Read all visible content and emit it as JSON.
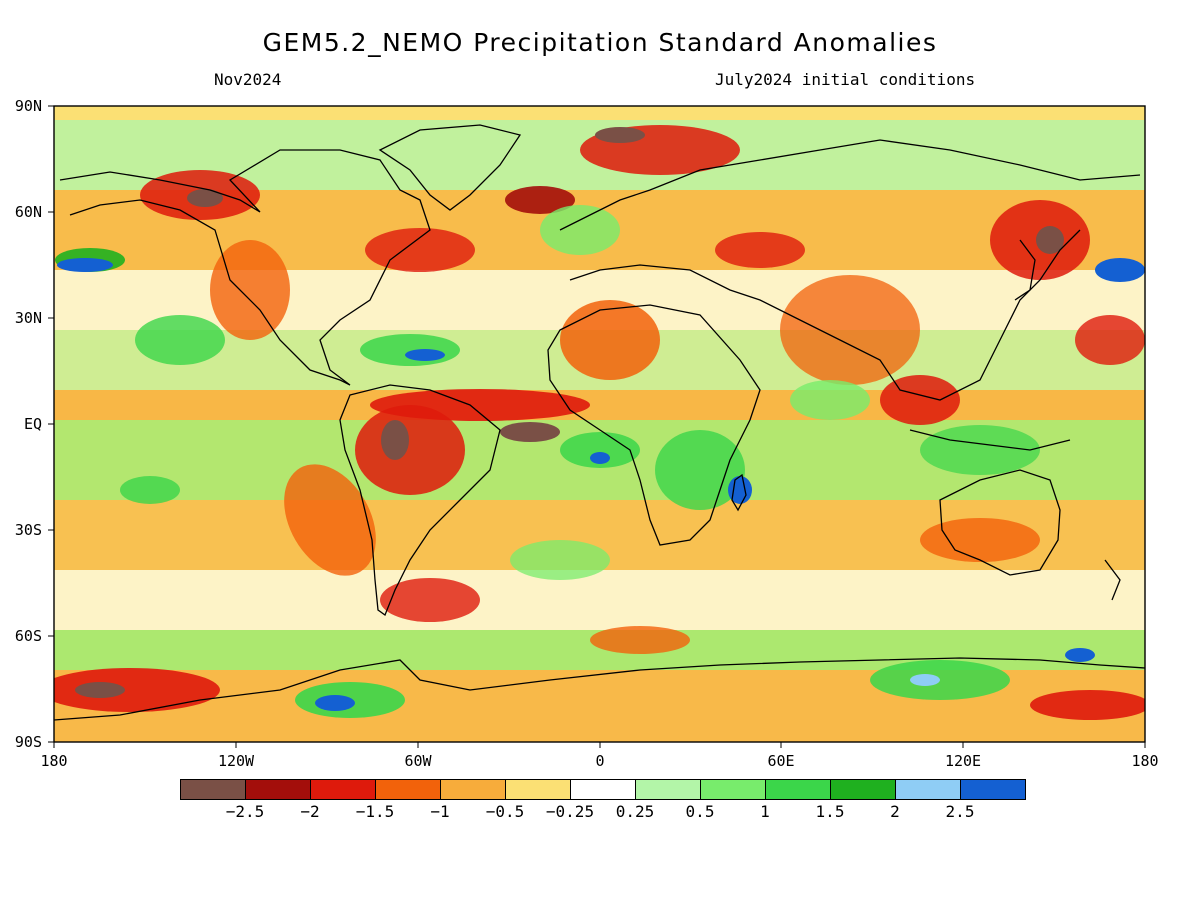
{
  "title": "GEM5.2_NEMO Precipitation Standard Anomalies",
  "subtitle_left": "Nov2024",
  "subtitle_right": "July2024 initial conditions",
  "lat_labels": [
    "90N",
    "60N",
    "30N",
    "EQ",
    "30S",
    "60S",
    "90S"
  ],
  "lon_labels": [
    "180",
    "120W",
    "60W",
    "0",
    "60E",
    "120E",
    "180"
  ],
  "colorbar": {
    "colors": [
      "#7a5046",
      "#a30e0b",
      "#de1a0c",
      "#f2620b",
      "#f7ac3b",
      "#fbe074",
      "#ffffff",
      "#b3f5a8",
      "#78ec6c",
      "#3bd64a",
      "#1fb01f",
      "#8fcdf5",
      "#1460d2"
    ],
    "labels": [
      "-2.5",
      "-2",
      "-1.5",
      "-1",
      "-0.5",
      "-0.25",
      "0.25",
      "0.5",
      "1",
      "1.5",
      "2",
      "2.5"
    ]
  }
}
